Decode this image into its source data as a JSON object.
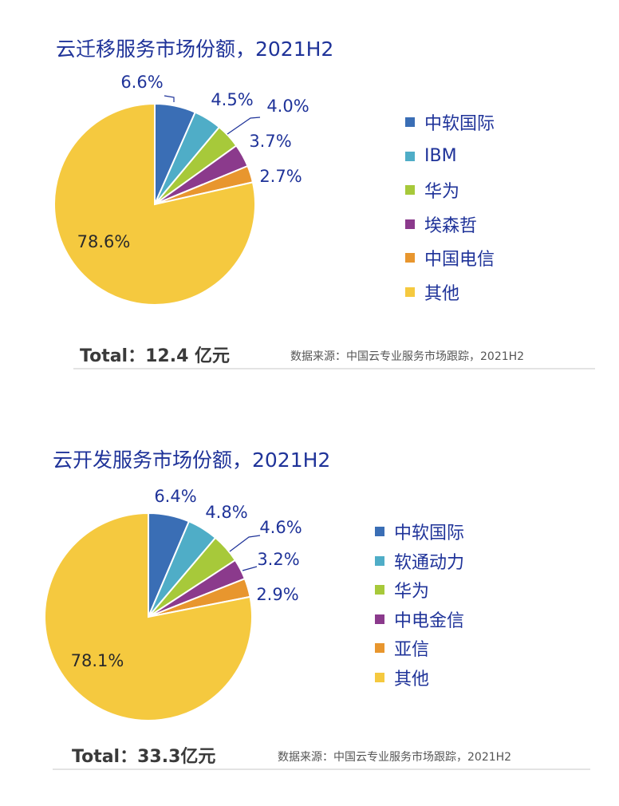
{
  "chart_data": [
    {
      "type": "pie",
      "title": "云迁移服务市场份额，2021H2",
      "categories": [
        "中软国际",
        "IBM",
        "华为",
        "埃森哲",
        "中国电信",
        "其他"
      ],
      "values": [
        6.6,
        4.5,
        4.0,
        3.7,
        2.7,
        78.6
      ],
      "value_labels": [
        "6.6%",
        "4.5%",
        "4.0%",
        "3.7%",
        "2.7%",
        "78.6%"
      ],
      "colors": [
        "#3a6eb5",
        "#4fadc7",
        "#a7c93a",
        "#8b3a8c",
        "#e8962e",
        "#f5c93f"
      ],
      "total": "Total：12.4 亿元",
      "source": "数据来源：中国云专业服务市场跟踪，2021H2",
      "legend_position": "right"
    },
    {
      "type": "pie",
      "title": "云开发服务市场份额，2021H2",
      "categories": [
        "中软国际",
        "软通动力",
        "华为",
        "中电金信",
        "亚信",
        "其他"
      ],
      "values": [
        6.4,
        4.8,
        4.6,
        3.2,
        2.9,
        78.1
      ],
      "value_labels": [
        "6.4%",
        "4.8%",
        "4.6%",
        "3.2%",
        "2.9%",
        "78.1%"
      ],
      "colors": [
        "#3a6eb5",
        "#4fadc7",
        "#a7c93a",
        "#8b3a8c",
        "#e8962e",
        "#f5c93f"
      ],
      "total": "Total：33.3亿元",
      "source": "数据来源：中国云专业服务市场跟踪，2021H2",
      "legend_position": "right"
    }
  ]
}
